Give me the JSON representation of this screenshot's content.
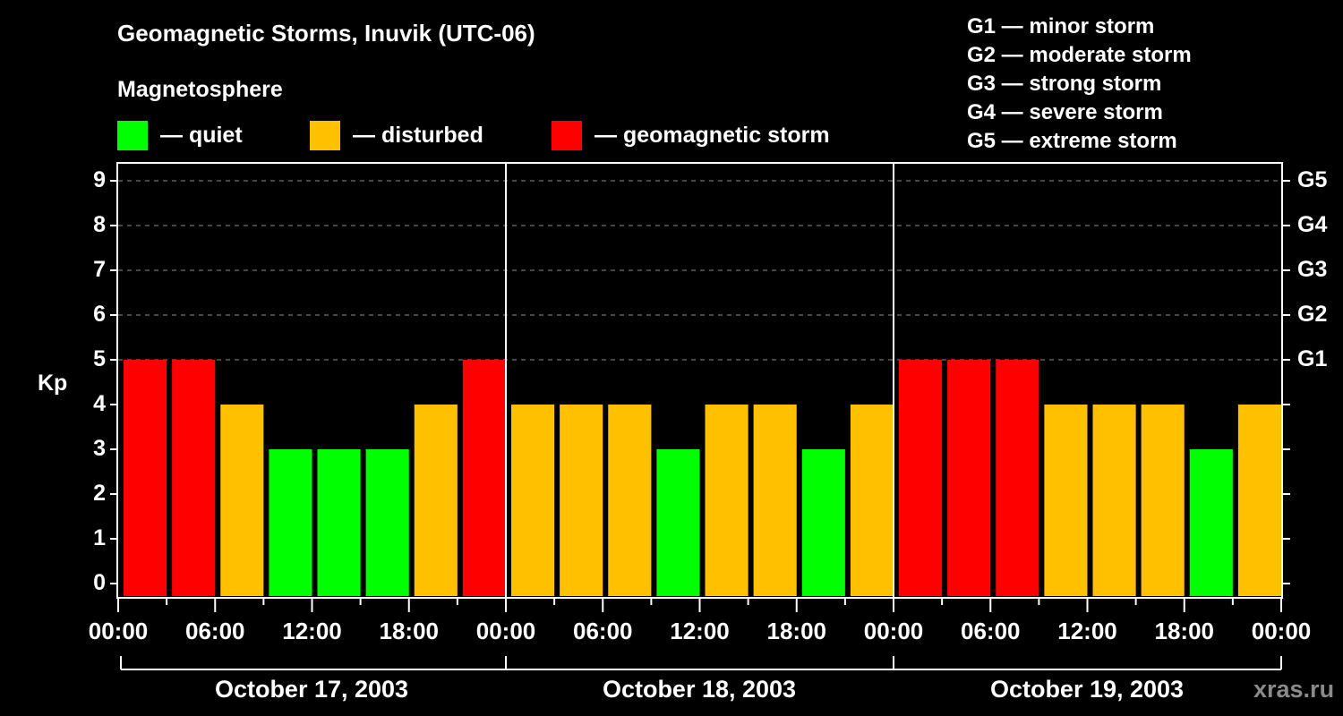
{
  "header": {
    "title": "Geomagnetic Storms, Inuvik (UTC-06)",
    "subtitle": "Magnetosphere"
  },
  "legend": [
    {
      "label": "— quiet",
      "color": "#00ff00"
    },
    {
      "label": "— disturbed",
      "color": "#ffc000"
    },
    {
      "label": "— geomagnetic storm",
      "color": "#ff0000"
    }
  ],
  "g_scale_legend": [
    "G1 — minor storm",
    "G2 — moderate storm",
    "G3 — strong storm",
    "G4 — severe storm",
    "G5 — extreme storm"
  ],
  "watermark": "xras.ru",
  "chart_data": {
    "type": "bar",
    "title": "Geomagnetic Storms, Inuvik (UTC-06)",
    "ylabel": "Kp",
    "xlabel": "",
    "ylim": [
      0,
      9
    ],
    "yticks": [
      0,
      1,
      2,
      3,
      4,
      5,
      6,
      7,
      8,
      9
    ],
    "right_axis_ticks": [
      {
        "kp": 5,
        "label": "G1"
      },
      {
        "kp": 6,
        "label": "G2"
      },
      {
        "kp": 7,
        "label": "G3"
      },
      {
        "kp": 8,
        "label": "G4"
      },
      {
        "kp": 9,
        "label": "G5"
      }
    ],
    "grid": "dashed horizontal at Kp 5-9",
    "x_tick_labels": [
      "00:00",
      "06:00",
      "12:00",
      "18:00",
      "00:00",
      "06:00",
      "12:00",
      "18:00",
      "00:00",
      "06:00",
      "12:00",
      "18:00",
      "00:00"
    ],
    "days": [
      "October 17, 2003",
      "October 18, 2003",
      "October 19, 2003"
    ],
    "categories": [
      "Oct17 00-03",
      "Oct17 03-06",
      "Oct17 06-09",
      "Oct17 09-12",
      "Oct17 12-15",
      "Oct17 15-18",
      "Oct17 18-21",
      "Oct17 21-24",
      "Oct18 00-03",
      "Oct18 03-06",
      "Oct18 06-09",
      "Oct18 09-12",
      "Oct18 12-15",
      "Oct18 15-18",
      "Oct18 18-21",
      "Oct18 21-24",
      "Oct19 00-03",
      "Oct19 03-06",
      "Oct19 06-09",
      "Oct19 09-12",
      "Oct19 12-15",
      "Oct19 15-18",
      "Oct19 18-21",
      "Oct19 21-24"
    ],
    "values": [
      5,
      5,
      4,
      3,
      3,
      3,
      4,
      5,
      4,
      4,
      4,
      3,
      4,
      4,
      3,
      4,
      5,
      5,
      5,
      4,
      4,
      4,
      3,
      4
    ],
    "status": [
      "storm",
      "storm",
      "disturbed",
      "quiet",
      "quiet",
      "quiet",
      "disturbed",
      "storm",
      "disturbed",
      "disturbed",
      "disturbed",
      "quiet",
      "disturbed",
      "disturbed",
      "quiet",
      "disturbed",
      "storm",
      "storm",
      "storm",
      "disturbed",
      "disturbed",
      "disturbed",
      "quiet",
      "disturbed"
    ],
    "colors": {
      "quiet": "#00ff00",
      "disturbed": "#ffc000",
      "storm": "#ff0000"
    }
  }
}
